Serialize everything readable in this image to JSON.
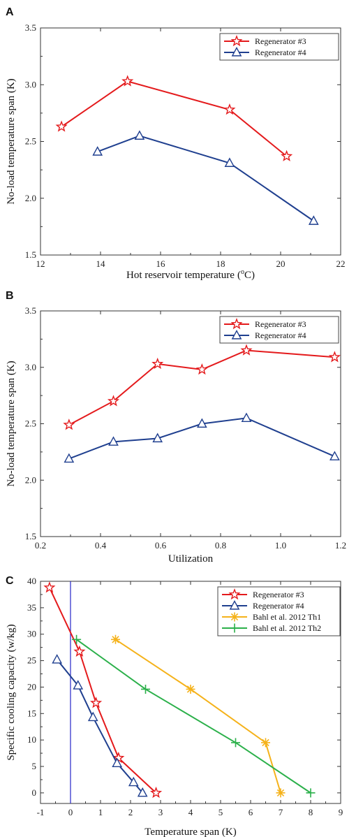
{
  "chart_data": [
    {
      "panel": "A",
      "type": "line",
      "xlabel": "Hot reservoir temperature",
      "xlabel_unit": "(",
      "xlabel_unit_sup": "o",
      "xlabel_unit_end": "C)",
      "ylabel": "No-load temperature span (K)",
      "xlim": [
        12,
        22
      ],
      "ylim": [
        1.5,
        3.5
      ],
      "xticks": [
        "12",
        "14",
        "16",
        "18",
        "20",
        "22"
      ],
      "yticks": [
        "1.5",
        "2.0",
        "2.5",
        "3.0",
        "3.5"
      ],
      "grid": false,
      "legend_position": "top-right",
      "series": [
        {
          "name": "Regenerator #3",
          "color": "#e41a1c",
          "marker": "star",
          "x": [
            12.7,
            14.9,
            18.3,
            20.2
          ],
          "y": [
            2.63,
            3.03,
            2.78,
            2.37
          ]
        },
        {
          "name": "Regenerator #4",
          "color": "#1f3f8f",
          "marker": "triangle",
          "x": [
            13.9,
            15.3,
            18.3,
            21.1
          ],
          "y": [
            2.41,
            2.55,
            2.31,
            1.8
          ]
        }
      ]
    },
    {
      "panel": "B",
      "type": "line",
      "xlabel": "Utilization",
      "ylabel": "No-load temperature span (K)",
      "xlim": [
        0.2,
        1.2
      ],
      "ylim": [
        1.5,
        3.5
      ],
      "xticks": [
        "0.2",
        "0.4",
        "0.6",
        "0.8",
        "1.0",
        "1.2"
      ],
      "yticks": [
        "1.5",
        "2.0",
        "2.5",
        "3.0",
        "3.5"
      ],
      "grid": false,
      "legend_position": "top-right",
      "series": [
        {
          "name": "Regenerator #3",
          "color": "#e41a1c",
          "marker": "star",
          "x": [
            0.295,
            0.443,
            0.59,
            0.738,
            0.886,
            1.18
          ],
          "y": [
            2.49,
            2.7,
            3.03,
            2.98,
            3.15,
            3.09
          ]
        },
        {
          "name": "Regenerator #4",
          "color": "#1f3f8f",
          "marker": "triangle",
          "x": [
            0.295,
            0.443,
            0.59,
            0.738,
            0.886,
            1.18
          ],
          "y": [
            2.19,
            2.34,
            2.37,
            2.5,
            2.55,
            2.21
          ]
        }
      ]
    },
    {
      "panel": "C",
      "type": "line",
      "xlabel": "Temperature span (K)",
      "ylabel": "Specific cooling capacity (w/kg)",
      "xlim": [
        -1,
        9
      ],
      "ylim": [
        -2,
        40
      ],
      "xticks": [
        "-1",
        "0",
        "1",
        "2",
        "3",
        "4",
        "5",
        "6",
        "7",
        "8",
        "9"
      ],
      "yticks": [
        "0",
        "5",
        "10",
        "15",
        "20",
        "25",
        "30",
        "35",
        "40"
      ],
      "grid": false,
      "legend_position": "top-right",
      "reference_line_x": 0,
      "series": [
        {
          "name": "Regenerator #3",
          "color": "#e41a1c",
          "marker": "star",
          "x": [
            -0.7,
            0.3,
            0.85,
            1.6,
            2.85
          ],
          "y": [
            38.8,
            26.7,
            17.0,
            6.6,
            0.0
          ]
        },
        {
          "name": "Regenerator #4",
          "color": "#1f3f8f",
          "marker": "triangle",
          "x": [
            -0.45,
            0.25,
            0.75,
            1.55,
            2.1,
            2.4
          ],
          "y": [
            25.2,
            20.3,
            14.3,
            5.6,
            2.0,
            0.0
          ]
        },
        {
          "name": "Bahl et al. 2012 Th1",
          "color": "#f5b21a",
          "marker": "asterisk",
          "x": [
            1.5,
            4.0,
            6.5,
            7.0
          ],
          "y": [
            29.0,
            19.6,
            9.5,
            0.0
          ]
        },
        {
          "name": "Bahl et al. 2012 Th2",
          "color": "#2bb04a",
          "marker": "plus",
          "x": [
            0.2,
            2.5,
            5.5,
            8.0
          ],
          "y": [
            29.0,
            19.6,
            9.5,
            0.0
          ]
        }
      ]
    }
  ]
}
